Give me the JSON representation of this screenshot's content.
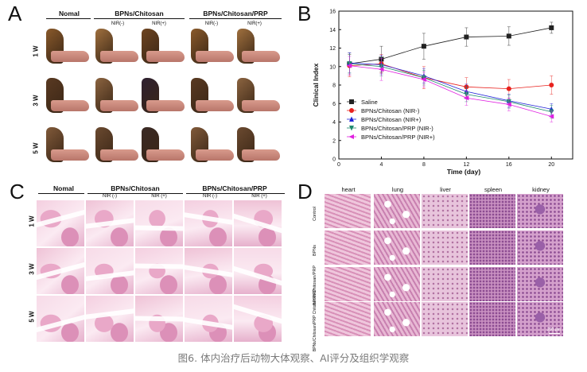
{
  "panelA": {
    "letter": "A",
    "headers": [
      "Nomal",
      "BPNs/Chitosan",
      "BPNs/Chitosan/PRP"
    ],
    "sub_labels": [
      "NIR(-)",
      "NIR(+)",
      "NIR(-)",
      "NIR(+)"
    ],
    "rows": [
      "1 W",
      "3 W",
      "5 W"
    ]
  },
  "panelB": {
    "letter": "B"
  },
  "panelC": {
    "letter": "C",
    "headers": [
      "Nomal",
      "BPNs/Chitosan",
      "BPNs/Chitosan/PRP"
    ],
    "sub_labels": [
      "NIR (-)",
      "NIR (+)",
      "NIR (-)",
      "NIR (+)"
    ],
    "rows": [
      "1 W",
      "3 W",
      "5 W"
    ]
  },
  "panelD": {
    "letter": "D",
    "columns": [
      "heart",
      "lung",
      "liver",
      "spleen",
      "kidney"
    ],
    "rows": [
      "Control",
      "BPNs",
      "BPNs/Chitosan/PRP",
      "BPNs/Chitosan/PRP Chitosan/PRP"
    ],
    "scalebar": "200 μm"
  },
  "caption": "图6. 体内治疗后动物大体观察、AI评分及组织学观察",
  "chart_data": {
    "type": "line",
    "xlabel": "Time (day)",
    "ylabel": "Clinical Index",
    "xlim": [
      0,
      22
    ],
    "ylim": [
      0,
      16
    ],
    "xticks": [
      0,
      4,
      8,
      12,
      16,
      20
    ],
    "yticks": [
      0,
      2,
      4,
      6,
      8,
      10,
      12,
      14,
      16
    ],
    "x": [
      1,
      4,
      8,
      12,
      16,
      20
    ],
    "legend_position": "bottom-left",
    "series": [
      {
        "name": "Saline",
        "color": "#222222",
        "marker": "square",
        "values": [
          10.3,
          10.8,
          12.2,
          13.2,
          13.3,
          14.2
        ],
        "errors": [
          1.2,
          1.4,
          1.4,
          1.0,
          1.0,
          0.6
        ]
      },
      {
        "name": "BPNs/Chitosan (NIR-)",
        "color": "#e8221e",
        "marker": "circle",
        "values": [
          10.1,
          10.3,
          8.8,
          7.8,
          7.6,
          8.0
        ],
        "errors": [
          1.2,
          1.0,
          1.2,
          1.0,
          1.0,
          1.0
        ]
      },
      {
        "name": "BPNs/Chitosan (NIR+)",
        "color": "#1f22d8",
        "marker": "triangle-up",
        "values": [
          10.4,
          10.2,
          9.0,
          7.3,
          6.3,
          5.4
        ],
        "errors": [
          1.1,
          1.0,
          0.8,
          0.8,
          0.7,
          0.6
        ]
      },
      {
        "name": "BPNs/Chitosan/PRP (NIR-)",
        "color": "#1e8a6e",
        "marker": "triangle-down",
        "values": [
          10.3,
          10.0,
          8.8,
          7.0,
          6.2,
          5.1
        ],
        "errors": [
          1.0,
          1.0,
          0.8,
          0.8,
          0.7,
          0.7
        ]
      },
      {
        "name": "BPNs/Chitosan/PRP (NIR+)",
        "color": "#e020e0",
        "marker": "triangle-left",
        "values": [
          10.1,
          9.7,
          8.6,
          6.6,
          5.9,
          4.6
        ],
        "errors": [
          1.0,
          1.2,
          0.8,
          0.8,
          0.7,
          0.6
        ]
      }
    ]
  }
}
